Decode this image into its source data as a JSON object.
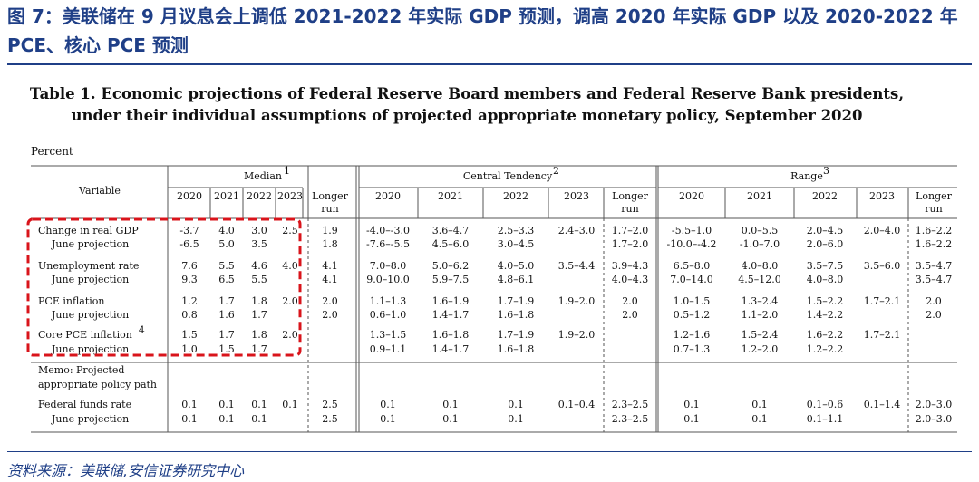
{
  "figure_title": "图 7：美联储在 9 月议息会上调低 2021-2022 年实际 GDP 预测，调高 2020 年实际 GDP 以及 2020-2022 年 PCE、核心 PCE 预测",
  "table_title_line1": "Table 1. Economic projections of Federal Reserve Board members and Federal Reserve Bank presidents,",
  "table_title_line2": "under their individual assumptions of projected appropriate monetary policy, September 2020",
  "units_label": "Percent",
  "variable_header": "Variable",
  "group_headers": [
    "Median",
    "Central Tendency",
    "Range"
  ],
  "group_footnotes": [
    "1",
    "2",
    "3"
  ],
  "col_headers": {
    "median": [
      "2020",
      "2021",
      "2022",
      "2023",
      "Longer",
      "run"
    ],
    "other": [
      "2020",
      "2021",
      "2022",
      "2023",
      "Longer",
      "run"
    ]
  },
  "rows": [
    {
      "label": "Change in real GDP",
      "median": [
        "-3.7",
        "4.0",
        "3.0",
        "2.5",
        "1.9"
      ],
      "ct": [
        "-4.0–-3.0",
        "3.6–4.7",
        "2.5–3.3",
        "2.4–3.0",
        "1.7–2.0"
      ],
      "range": [
        "-5.5–1.0",
        "0.0–5.5",
        "2.0–4.5",
        "2.0–4.0",
        "1.6–2.2"
      ]
    },
    {
      "label": "June projection",
      "indent": true,
      "median": [
        "-6.5",
        "5.0",
        "3.5",
        "",
        "1.8"
      ],
      "ct": [
        "-7.6–-5.5",
        "4.5–6.0",
        "3.0–4.5",
        "",
        "1.7–2.0"
      ],
      "range": [
        "-10.0–-4.2",
        "-1.0–7.0",
        "2.0–6.0",
        "",
        "1.6–2.2"
      ]
    },
    {
      "label": "Unemployment rate",
      "median": [
        "7.6",
        "5.5",
        "4.6",
        "4.0",
        "4.1"
      ],
      "ct": [
        "7.0–8.0",
        "5.0–6.2",
        "4.0–5.0",
        "3.5–4.4",
        "3.9–4.3"
      ],
      "range": [
        "6.5–8.0",
        "4.0–8.0",
        "3.5–7.5",
        "3.5–6.0",
        "3.5–4.7"
      ]
    },
    {
      "label": "June projection",
      "indent": true,
      "median": [
        "9.3",
        "6.5",
        "5.5",
        "",
        "4.1"
      ],
      "ct": [
        "9.0–10.0",
        "5.9–7.5",
        "4.8–6.1",
        "",
        "4.0–4.3"
      ],
      "range": [
        "7.0–14.0",
        "4.5–12.0",
        "4.0–8.0",
        "",
        "3.5–4.7"
      ]
    },
    {
      "label": "PCE inflation",
      "median": [
        "1.2",
        "1.7",
        "1.8",
        "2.0",
        "2.0"
      ],
      "ct": [
        "1.1–1.3",
        "1.6–1.9",
        "1.7–1.9",
        "1.9–2.0",
        "2.0"
      ],
      "range": [
        "1.0–1.5",
        "1.3–2.4",
        "1.5–2.2",
        "1.7–2.1",
        "2.0"
      ]
    },
    {
      "label": "June projection",
      "indent": true,
      "median": [
        "0.8",
        "1.6",
        "1.7",
        "",
        "2.0"
      ],
      "ct": [
        "0.6–1.0",
        "1.4–1.7",
        "1.6–1.8",
        "",
        "2.0"
      ],
      "range": [
        "0.5–1.2",
        "1.1–2.0",
        "1.4–2.2",
        "",
        "2.0"
      ]
    },
    {
      "label": "Core PCE inflation",
      "footnote": "4",
      "median": [
        "1.5",
        "1.7",
        "1.8",
        "2.0",
        ""
      ],
      "ct": [
        "1.3–1.5",
        "1.6–1.8",
        "1.7–1.9",
        "1.9–2.0",
        ""
      ],
      "range": [
        "1.2–1.6",
        "1.5–2.4",
        "1.6–2.2",
        "1.7–2.1",
        ""
      ]
    },
    {
      "label": "June projection",
      "indent": true,
      "median": [
        "1.0",
        "1.5",
        "1.7",
        "",
        ""
      ],
      "ct": [
        "0.9–1.1",
        "1.4–1.7",
        "1.6–1.8",
        "",
        ""
      ],
      "range": [
        "0.7–1.3",
        "1.2–2.0",
        "1.2–2.2",
        "",
        ""
      ]
    },
    {
      "label": "Federal funds rate",
      "median": [
        "0.1",
        "0.1",
        "0.1",
        "0.1",
        "2.5"
      ],
      "ct": [
        "0.1",
        "0.1",
        "0.1",
        "0.1–0.4",
        "2.3–2.5"
      ],
      "range": [
        "0.1",
        "0.1",
        "0.1–0.6",
        "0.1–1.4",
        "2.0–3.0"
      ]
    },
    {
      "label": "June projection",
      "indent": true,
      "median": [
        "0.1",
        "0.1",
        "0.1",
        "",
        "2.5"
      ],
      "ct": [
        "0.1",
        "0.1",
        "0.1",
        "",
        "2.3–2.5"
      ],
      "range": [
        "0.1",
        "0.1",
        "0.1–1.1",
        "",
        "2.0–3.0"
      ]
    }
  ],
  "memo_lines": [
    "Memo: Projected",
    "appropriate policy path"
  ],
  "source": "资料来源：美联储,安信证券研究中心",
  "colors": {
    "brand_blue": "#1f3f87",
    "highlight_red": "#d9141b",
    "grid": "#555555"
  }
}
